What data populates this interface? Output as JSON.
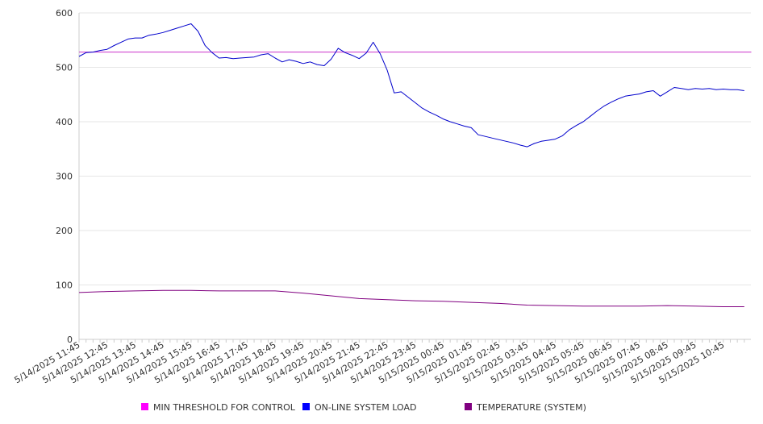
{
  "chart_data": {
    "type": "line",
    "title": "",
    "xlabel": "",
    "ylabel": "",
    "ylim": [
      0,
      600
    ],
    "yticks": [
      0,
      100,
      200,
      300,
      400,
      500,
      600
    ],
    "grid": true,
    "legend_position": "bottom",
    "x_tick_labels": [
      "5/14/2025 11:45",
      "5/14/2025 12:45",
      "5/14/2025 13:45",
      "5/14/2025 14:45",
      "5/14/2025 15:45",
      "5/14/2025 16:45",
      "5/14/2025 17:45",
      "5/14/2025 18:45",
      "5/14/2025 19:45",
      "5/14/2025 20:45",
      "5/14/2025 21:45",
      "5/14/2025 22:45",
      "5/14/2025 23:45",
      "5/15/2025 00:45",
      "5/15/2025 01:45",
      "5/15/2025 02:45",
      "5/15/2025 03:45",
      "5/15/2025 04:45",
      "5/15/2025 05:45",
      "5/15/2025 06:45",
      "5/15/2025 07:45",
      "5/15/2025 08:45",
      "5/15/2025 09:45",
      "5/15/2025 10:45"
    ],
    "series": [
      {
        "name": "MIN THRESHOLD FOR CONTROL",
        "color": "#cc33cc",
        "legend_color": "#ff00ff",
        "points": [
          [
            "5/14/2025 11:45",
            528
          ],
          [
            "5/15/2025 11:45",
            528
          ]
        ]
      },
      {
        "name": "ON-LINE SYSTEM LOAD",
        "color": "#0000cc",
        "legend_color": "#0000ff",
        "points": [
          [
            "5/14/2025 11:45",
            520
          ],
          [
            "5/14/2025 12:00",
            527
          ],
          [
            "5/14/2025 12:15",
            528
          ],
          [
            "5/14/2025 12:30",
            531
          ],
          [
            "5/14/2025 12:45",
            533
          ],
          [
            "5/14/2025 13:00",
            540
          ],
          [
            "5/14/2025 13:15",
            546
          ],
          [
            "5/14/2025 13:30",
            552
          ],
          [
            "5/14/2025 13:45",
            554
          ],
          [
            "5/14/2025 14:00",
            554
          ],
          [
            "5/14/2025 14:15",
            559
          ],
          [
            "5/14/2025 14:30",
            561
          ],
          [
            "5/14/2025 14:45",
            564
          ],
          [
            "5/14/2025 15:00",
            568
          ],
          [
            "5/14/2025 15:15",
            572
          ],
          [
            "5/14/2025 15:30",
            576
          ],
          [
            "5/14/2025 15:45",
            580
          ],
          [
            "5/14/2025 16:00",
            566
          ],
          [
            "5/14/2025 16:15",
            540
          ],
          [
            "5/14/2025 16:30",
            527
          ],
          [
            "5/14/2025 16:45",
            517
          ],
          [
            "5/14/2025 17:00",
            518
          ],
          [
            "5/14/2025 17:15",
            516
          ],
          [
            "5/14/2025 17:30",
            517
          ],
          [
            "5/14/2025 17:45",
            518
          ],
          [
            "5/14/2025 18:00",
            519
          ],
          [
            "5/14/2025 18:15",
            523
          ],
          [
            "5/14/2025 18:30",
            525
          ],
          [
            "5/14/2025 18:45",
            517
          ],
          [
            "5/14/2025 19:00",
            510
          ],
          [
            "5/14/2025 19:15",
            514
          ],
          [
            "5/14/2025 19:30",
            511
          ],
          [
            "5/14/2025 19:45",
            507
          ],
          [
            "5/14/2025 20:00",
            510
          ],
          [
            "5/14/2025 20:15",
            505
          ],
          [
            "5/14/2025 20:30",
            503
          ],
          [
            "5/14/2025 20:45",
            515
          ],
          [
            "5/14/2025 21:00",
            535
          ],
          [
            "5/14/2025 21:15",
            527
          ],
          [
            "5/14/2025 21:30",
            522
          ],
          [
            "5/14/2025 21:45",
            516
          ],
          [
            "5/14/2025 22:00",
            526
          ],
          [
            "5/14/2025 22:15",
            546
          ],
          [
            "5/14/2025 22:30",
            525
          ],
          [
            "5/14/2025 22:45",
            495
          ],
          [
            "5/14/2025 23:00",
            453
          ],
          [
            "5/14/2025 23:15",
            455
          ],
          [
            "5/14/2025 23:30",
            445
          ],
          [
            "5/14/2025 23:45",
            435
          ],
          [
            "5/15/2025 00:00",
            425
          ],
          [
            "5/15/2025 00:15",
            418
          ],
          [
            "5/15/2025 00:30",
            412
          ],
          [
            "5/15/2025 00:45",
            405
          ],
          [
            "5/15/2025 01:00",
            400
          ],
          [
            "5/15/2025 01:15",
            396
          ],
          [
            "5/15/2025 01:30",
            392
          ],
          [
            "5/15/2025 01:45",
            389
          ],
          [
            "5/15/2025 02:00",
            376
          ],
          [
            "5/15/2025 02:15",
            373
          ],
          [
            "5/15/2025 02:30",
            370
          ],
          [
            "5/15/2025 02:45",
            367
          ],
          [
            "5/15/2025 03:00",
            364
          ],
          [
            "5/15/2025 03:15",
            361
          ],
          [
            "5/15/2025 03:30",
            357
          ],
          [
            "5/15/2025 03:45",
            354
          ],
          [
            "5/15/2025 04:00",
            360
          ],
          [
            "5/15/2025 04:15",
            364
          ],
          [
            "5/15/2025 04:30",
            366
          ],
          [
            "5/15/2025 04:45",
            368
          ],
          [
            "5/15/2025 05:00",
            374
          ],
          [
            "5/15/2025 05:15",
            385
          ],
          [
            "5/15/2025 05:30",
            393
          ],
          [
            "5/15/2025 05:45",
            400
          ],
          [
            "5/15/2025 06:00",
            410
          ],
          [
            "5/15/2025 06:15",
            420
          ],
          [
            "5/15/2025 06:30",
            429
          ],
          [
            "5/15/2025 06:45",
            436
          ],
          [
            "5/15/2025 07:00",
            442
          ],
          [
            "5/15/2025 07:15",
            447
          ],
          [
            "5/15/2025 07:30",
            449
          ],
          [
            "5/15/2025 07:45",
            451
          ],
          [
            "5/15/2025 08:00",
            455
          ],
          [
            "5/15/2025 08:15",
            457
          ],
          [
            "5/15/2025 08:30",
            447
          ],
          [
            "5/15/2025 08:45",
            455
          ],
          [
            "5/15/2025 09:00",
            463
          ],
          [
            "5/15/2025 09:15",
            461
          ],
          [
            "5/15/2025 09:30",
            459
          ],
          [
            "5/15/2025 09:45",
            461
          ],
          [
            "5/15/2025 10:00",
            460
          ],
          [
            "5/15/2025 10:15",
            461
          ],
          [
            "5/15/2025 10:30",
            459
          ],
          [
            "5/15/2025 10:45",
            460
          ],
          [
            "5/15/2025 11:00",
            459
          ],
          [
            "5/15/2025 11:15",
            459
          ],
          [
            "5/15/2025 11:30",
            457
          ]
        ]
      },
      {
        "name": "TEMPERATURE (SYSTEM)",
        "color": "#800080",
        "legend_color": "#800080",
        "points": [
          [
            "5/14/2025 11:45",
            86
          ],
          [
            "5/14/2025 12:45",
            88
          ],
          [
            "5/14/2025 13:45",
            89
          ],
          [
            "5/14/2025 14:45",
            90
          ],
          [
            "5/14/2025 15:45",
            90
          ],
          [
            "5/14/2025 16:45",
            89
          ],
          [
            "5/14/2025 17:45",
            89
          ],
          [
            "5/14/2025 18:45",
            89
          ],
          [
            "5/14/2025 19:45",
            85
          ],
          [
            "5/14/2025 20:45",
            80
          ],
          [
            "5/14/2025 21:45",
            75
          ],
          [
            "5/14/2025 22:45",
            73
          ],
          [
            "5/14/2025 23:45",
            71
          ],
          [
            "5/15/2025 00:45",
            70
          ],
          [
            "5/15/2025 01:45",
            68
          ],
          [
            "5/15/2025 02:45",
            66
          ],
          [
            "5/15/2025 03:45",
            63
          ],
          [
            "5/15/2025 04:45",
            62
          ],
          [
            "5/15/2025 05:45",
            61
          ],
          [
            "5/15/2025 06:45",
            61
          ],
          [
            "5/15/2025 07:45",
            61
          ],
          [
            "5/15/2025 08:45",
            62
          ],
          [
            "5/15/2025 09:45",
            61
          ],
          [
            "5/15/2025 10:45",
            60
          ],
          [
            "5/15/2025 11:30",
            60
          ]
        ]
      }
    ]
  }
}
